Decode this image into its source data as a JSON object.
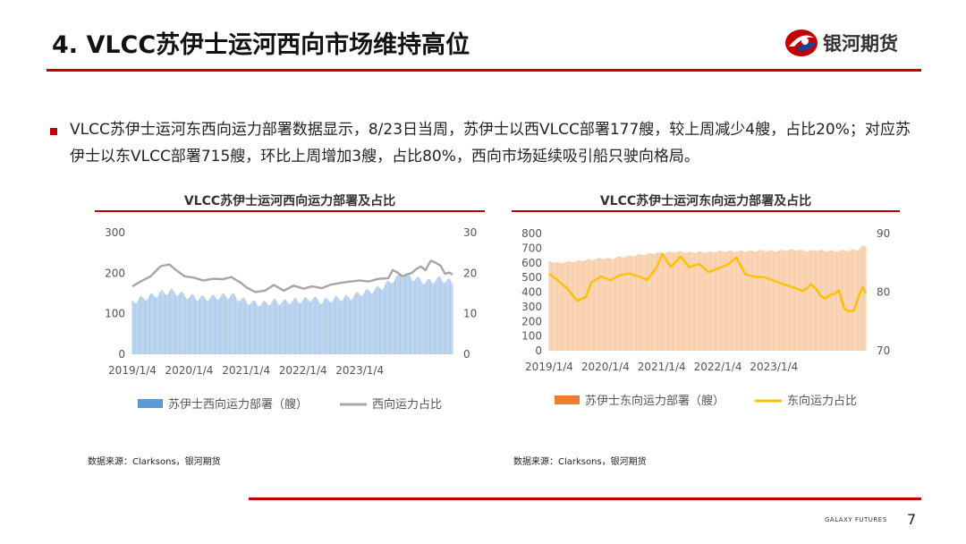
{
  "header": {
    "title": "4. VLCC苏伊士运河西向市场维持高位",
    "logo_text": "银河期货"
  },
  "bullet": {
    "text": "VLCC苏伊士运河东西向运力部署数据显示，8/23日当周，苏伊士以西VLCC部署177艘，较上周减少4艘，占比20%；对应苏伊士以东VLCC部署715艘，环比上周增加3艘，占比80%，西向市场延续吸引船只驶向格局。"
  },
  "left_chart": {
    "title": "VLCC苏伊士运河西向运力部署及占比",
    "source": "数据来源：Clarksons，银河期货"
  },
  "right_chart": {
    "title": "VLCC苏伊士运河东向运力部署及占比",
    "source": "数据来源：Clarksons，银河期货"
  },
  "colors": {
    "accent_red": "#c00000",
    "west_bar": "#a9c8ea",
    "west_legend": "#5b9bd5",
    "west_line": "#a6a6a6",
    "east_bar": "#f8c9a2",
    "east_legend": "#ed7d31",
    "east_line": "#ffc000"
  },
  "footer": {
    "brand": "GALAXY FUTURES",
    "page_number": "7"
  },
  "chart_data": [
    {
      "type": "bar",
      "title": "VLCC苏伊士运河西向运力部署及占比",
      "x_ticks": [
        "2019/1/4",
        "2020/1/4",
        "2021/1/4",
        "2022/1/4",
        "2023/1/4"
      ],
      "y_left_ticks": [
        "0",
        "100",
        "200",
        "300"
      ],
      "y_right_ticks": [
        "0",
        "10",
        "20",
        "30"
      ],
      "y_left_lim": [
        0,
        300
      ],
      "y_right_lim": [
        0,
        30
      ],
      "x_range": [
        "2019-01-04",
        "2024-08-23"
      ],
      "series": [
        {
          "name": "苏伊士西向运力部署（艘）",
          "kind": "bar",
          "axis": "left",
          "points": [
            [
              "2019-01-04",
              130
            ],
            [
              "2019-03-01",
              137
            ],
            [
              "2019-05-03",
              143
            ],
            [
              "2019-07-05",
              150
            ],
            [
              "2019-08-30",
              155
            ],
            [
              "2019-10-04",
              153
            ],
            [
              "2019-12-06",
              145
            ],
            [
              "2020-02-07",
              140
            ],
            [
              "2020-04-03",
              138
            ],
            [
              "2020-06-05",
              140
            ],
            [
              "2020-08-07",
              143
            ],
            [
              "2020-10-02",
              145
            ],
            [
              "2020-12-04",
              135
            ],
            [
              "2021-01-08",
              130
            ],
            [
              "2021-03-05",
              125
            ],
            [
              "2021-05-07",
              125
            ],
            [
              "2021-07-02",
              130
            ],
            [
              "2021-09-03",
              128
            ],
            [
              "2021-11-05",
              132
            ],
            [
              "2022-01-07",
              133
            ],
            [
              "2022-03-04",
              138
            ],
            [
              "2022-05-06",
              130
            ],
            [
              "2022-07-01",
              135
            ],
            [
              "2022-09-02",
              138
            ],
            [
              "2022-11-04",
              140
            ],
            [
              "2023-01-06",
              150
            ],
            [
              "2023-03-03",
              155
            ],
            [
              "2023-05-05",
              162
            ],
            [
              "2023-07-07",
              175
            ],
            [
              "2023-08-04",
              183
            ],
            [
              "2023-09-01",
              188
            ],
            [
              "2023-10-06",
              198
            ],
            [
              "2023-11-03",
              195
            ],
            [
              "2023-12-01",
              190
            ],
            [
              "2024-01-05",
              185
            ],
            [
              "2024-02-02",
              182
            ],
            [
              "2024-03-01",
              178
            ],
            [
              "2024-04-05",
              180
            ],
            [
              "2024-05-03",
              183
            ],
            [
              "2024-06-07",
              186
            ],
            [
              "2024-07-05",
              182
            ],
            [
              "2024-08-02",
              180
            ],
            [
              "2024-08-23",
              177
            ]
          ]
        },
        {
          "name": "西向运力占比",
          "kind": "line",
          "axis": "right",
          "points": [
            [
              "2019-01-04",
              16.8
            ],
            [
              "2019-03-01",
              18.0
            ],
            [
              "2019-05-03",
              19.2
            ],
            [
              "2019-07-05",
              21.6
            ],
            [
              "2019-08-30",
              22.0
            ],
            [
              "2019-10-04",
              20.8
            ],
            [
              "2019-12-06",
              19.0
            ],
            [
              "2020-02-07",
              18.6
            ],
            [
              "2020-04-03",
              17.9
            ],
            [
              "2020-06-05",
              18.3
            ],
            [
              "2020-08-07",
              18.2
            ],
            [
              "2020-10-02",
              18.7
            ],
            [
              "2020-12-04",
              17.2
            ],
            [
              "2021-01-08",
              16.1
            ],
            [
              "2021-03-05",
              15.0
            ],
            [
              "2021-05-07",
              15.4
            ],
            [
              "2021-07-02",
              16.8
            ],
            [
              "2021-09-03",
              15.4
            ],
            [
              "2021-11-05",
              16.7
            ],
            [
              "2022-01-07",
              16.0
            ],
            [
              "2022-03-04",
              16.6
            ],
            [
              "2022-05-06",
              16.2
            ],
            [
              "2022-07-01",
              17.1
            ],
            [
              "2022-09-02",
              17.6
            ],
            [
              "2022-11-04",
              18.0
            ],
            [
              "2023-01-06",
              18.3
            ],
            [
              "2023-03-03",
              18.1
            ],
            [
              "2023-05-05",
              18.8
            ],
            [
              "2023-07-07",
              19.0
            ],
            [
              "2023-08-04",
              21.0
            ],
            [
              "2023-09-01",
              20.5
            ],
            [
              "2023-10-06",
              19.5
            ],
            [
              "2023-11-03",
              20.0
            ],
            [
              "2023-12-01",
              20.3
            ],
            [
              "2024-01-05",
              21.4
            ],
            [
              "2024-02-02",
              22.0
            ],
            [
              "2024-03-01",
              21.1
            ],
            [
              "2024-04-05",
              23.4
            ],
            [
              "2024-05-03",
              23.0
            ],
            [
              "2024-06-07",
              22.2
            ],
            [
              "2024-07-05",
              20.2
            ],
            [
              "2024-08-02",
              20.5
            ],
            [
              "2024-08-23",
              20.0
            ]
          ]
        }
      ]
    },
    {
      "type": "bar",
      "title": "VLCC苏伊士运河东向运力部署及占比",
      "x_ticks": [
        "2019/1/4",
        "2020/1/4",
        "2021/1/4",
        "2022/1/4",
        "2023/1/4"
      ],
      "y_left_ticks": [
        "0",
        "100",
        "200",
        "300",
        "400",
        "500",
        "600",
        "700",
        "800"
      ],
      "y_right_ticks": [
        "70",
        "80",
        "90"
      ],
      "y_left_lim": [
        0,
        800
      ],
      "y_right_lim": [
        70,
        90
      ],
      "x_range": [
        "2019-01-04",
        "2024-08-23"
      ],
      "series": [
        {
          "name": "苏伊士东向运力部署（艘）",
          "kind": "bar",
          "axis": "left",
          "points": [
            [
              "2019-01-04",
              610
            ],
            [
              "2019-03-01",
              600
            ],
            [
              "2019-05-03",
              605
            ],
            [
              "2019-07-05",
              612
            ],
            [
              "2019-08-30",
              618
            ],
            [
              "2019-10-04",
              622
            ],
            [
              "2019-12-06",
              630
            ],
            [
              "2020-02-07",
              628
            ],
            [
              "2020-04-03",
              640
            ],
            [
              "2020-06-05",
              645
            ],
            [
              "2020-08-07",
              655
            ],
            [
              "2020-10-02",
              660
            ],
            [
              "2020-12-04",
              668
            ],
            [
              "2021-01-08",
              670
            ],
            [
              "2021-03-05",
              672
            ],
            [
              "2021-05-07",
              675
            ],
            [
              "2021-07-02",
              670
            ],
            [
              "2021-09-03",
              674
            ],
            [
              "2021-11-05",
              672
            ],
            [
              "2022-01-07",
              678
            ],
            [
              "2022-03-04",
              680
            ],
            [
              "2022-05-06",
              678
            ],
            [
              "2022-07-01",
              680
            ],
            [
              "2022-09-02",
              682
            ],
            [
              "2022-11-04",
              684
            ],
            [
              "2023-01-06",
              680
            ],
            [
              "2023-03-03",
              685
            ],
            [
              "2023-05-05",
              688
            ],
            [
              "2023-07-07",
              684
            ],
            [
              "2023-08-04",
              680
            ],
            [
              "2023-09-01",
              682
            ],
            [
              "2023-10-06",
              686
            ],
            [
              "2023-11-03",
              684
            ],
            [
              "2023-12-01",
              683
            ],
            [
              "2024-01-05",
              682
            ],
            [
              "2024-02-02",
              680
            ],
            [
              "2024-03-01",
              682
            ],
            [
              "2024-04-05",
              685
            ],
            [
              "2024-05-03",
              684
            ],
            [
              "2024-06-07",
              688
            ],
            [
              "2024-07-05",
              690
            ],
            [
              "2024-08-02",
              712
            ],
            [
              "2024-08-23",
              715
            ]
          ]
        },
        {
          "name": "东向运力占比",
          "kind": "line",
          "axis": "right",
          "points": [
            [
              "2019-01-04",
              83.2
            ],
            [
              "2019-03-01",
              82.0
            ],
            [
              "2019-05-03",
              80.5
            ],
            [
              "2019-07-05",
              78.4
            ],
            [
              "2019-08-30",
              79.0
            ],
            [
              "2019-10-04",
              81.5
            ],
            [
              "2019-12-06",
              82.5
            ],
            [
              "2020-02-07",
              81.8
            ],
            [
              "2020-04-03",
              82.6
            ],
            [
              "2020-06-05",
              82.9
            ],
            [
              "2020-08-07",
              82.4
            ],
            [
              "2020-10-02",
              81.8
            ],
            [
              "2020-12-04",
              84.0
            ],
            [
              "2021-01-08",
              86.2
            ],
            [
              "2021-03-05",
              84.0
            ],
            [
              "2021-05-07",
              85.8
            ],
            [
              "2021-07-02",
              84.0
            ],
            [
              "2021-09-03",
              84.6
            ],
            [
              "2021-11-05",
              83.2
            ],
            [
              "2022-01-07",
              83.9
            ],
            [
              "2022-03-04",
              84.5
            ],
            [
              "2022-05-06",
              85.8
            ],
            [
              "2022-07-01",
              83.0
            ],
            [
              "2022-09-02",
              82.6
            ],
            [
              "2022-11-04",
              82.6
            ],
            [
              "2023-01-06",
              82.0
            ],
            [
              "2023-03-03",
              81.5
            ],
            [
              "2023-05-05",
              81.0
            ],
            [
              "2023-07-07",
              80.4
            ],
            [
              "2023-08-04",
              80.8
            ],
            [
              "2023-09-01",
              81.6
            ],
            [
              "2023-10-06",
              80.8
            ],
            [
              "2023-11-03",
              79.6
            ],
            [
              "2023-12-01",
              79.2
            ],
            [
              "2024-01-05",
              79.8
            ],
            [
              "2024-02-02",
              80.0
            ],
            [
              "2024-03-01",
              80.6
            ],
            [
              "2024-04-05",
              77.5
            ],
            [
              "2024-05-03",
              77.0
            ],
            [
              "2024-06-07",
              77.2
            ],
            [
              "2024-07-05",
              79.4
            ],
            [
              "2024-08-02",
              81.2
            ],
            [
              "2024-08-23",
              80.0
            ]
          ]
        }
      ]
    }
  ]
}
